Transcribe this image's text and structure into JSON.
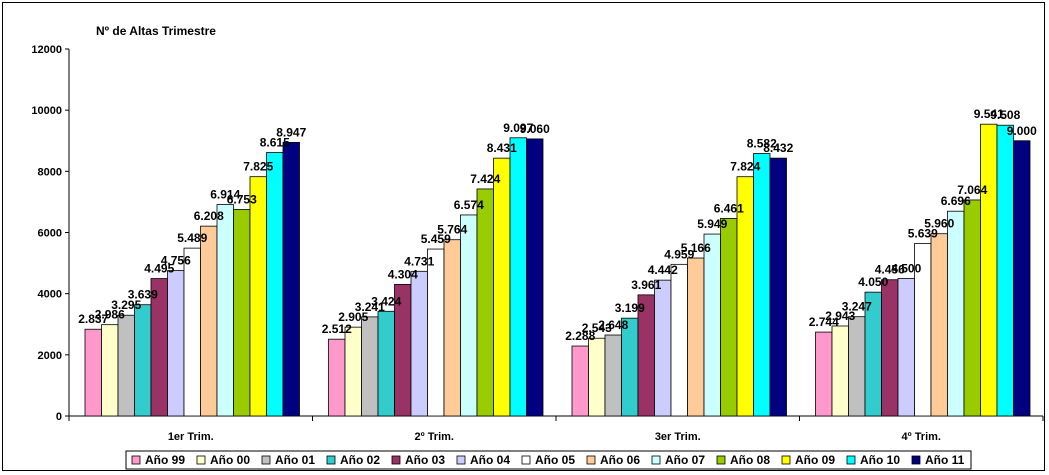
{
  "chart_data": {
    "type": "bar",
    "title": "Nº de Altas Trimestre",
    "categories": [
      "1er Trim.",
      "2º Trim.",
      "3er Trim.",
      "4º Trim."
    ],
    "ylim": [
      0,
      12000
    ],
    "yticks": [
      "0",
      "2000",
      "4000",
      "6000",
      "8000",
      "10000",
      "12000"
    ],
    "grid": false,
    "legend_position": "bottom",
    "series": [
      {
        "name": "Año 99",
        "color": "#FF99CC",
        "values": [
          2837,
          2512,
          2288,
          2744
        ],
        "labels": [
          "2.837",
          "2.512",
          "2.288",
          "2.744"
        ]
      },
      {
        "name": "Año 00",
        "color": "#FFFFCC",
        "values": [
          2986,
          2905,
          2543,
          2943
        ],
        "labels": [
          "2.986",
          "2.905",
          "2.543",
          "2.943"
        ]
      },
      {
        "name": "Año 01",
        "color": "#C0C0C0",
        "values": [
          3295,
          3241,
          2648,
          3247
        ],
        "labels": [
          "3.295",
          "3.241",
          "2.648",
          "3.247"
        ]
      },
      {
        "name": "Año 02",
        "color": "#33CCCC",
        "values": [
          3639,
          3424,
          3199,
          4050
        ],
        "labels": [
          "3.639",
          "3.424",
          "3.199",
          "4.050"
        ]
      },
      {
        "name": "Año 03",
        "color": "#993366",
        "values": [
          4495,
          4304,
          3961,
          4456
        ],
        "labels": [
          "4.495",
          "4.304",
          "3.961",
          "4.456"
        ]
      },
      {
        "name": "Año 04",
        "color": "#CCCCFF",
        "values": [
          4756,
          4731,
          4442,
          4500
        ],
        "labels": [
          "4.756",
          "4.731",
          "4.442",
          "4.500"
        ]
      },
      {
        "name": "Año 05",
        "color": "#FFFFFF",
        "values": [
          5489,
          5459,
          4959,
          5639
        ],
        "labels": [
          "5.489",
          "5.459",
          "4.959",
          "5.639"
        ]
      },
      {
        "name": "Año 06",
        "color": "#FFCC99",
        "values": [
          6208,
          5764,
          5166,
          5960
        ],
        "labels": [
          "6.208",
          "5.764",
          "5.166",
          "5.960"
        ]
      },
      {
        "name": "Año 07",
        "color": "#CCFFFF",
        "values": [
          6914,
          6574,
          5949,
          6696
        ],
        "labels": [
          "6.914",
          "6.574",
          "5.949",
          "6.696"
        ]
      },
      {
        "name": "Año 08",
        "color": "#99CC00",
        "values": [
          6753,
          7424,
          6461,
          7064
        ],
        "labels": [
          "6.753",
          "7.424",
          "6.461",
          "7.064"
        ]
      },
      {
        "name": "Año 09",
        "color": "#FFFF00",
        "values": [
          7825,
          8431,
          7824,
          9541
        ],
        "labels": [
          "7.825",
          "8.431",
          "7.824",
          "9.541"
        ]
      },
      {
        "name": "Año 10",
        "color": "#00FFFF",
        "values": [
          8615,
          9097,
          8582,
          9508
        ],
        "labels": [
          "8.615",
          "9.097",
          "8.582",
          "9.508"
        ]
      },
      {
        "name": "Año 11",
        "color": "#000080",
        "values": [
          8947,
          9060,
          8432,
          9000
        ],
        "labels": [
          "8.947",
          "9.060",
          "8.432",
          "9.000"
        ]
      }
    ]
  }
}
